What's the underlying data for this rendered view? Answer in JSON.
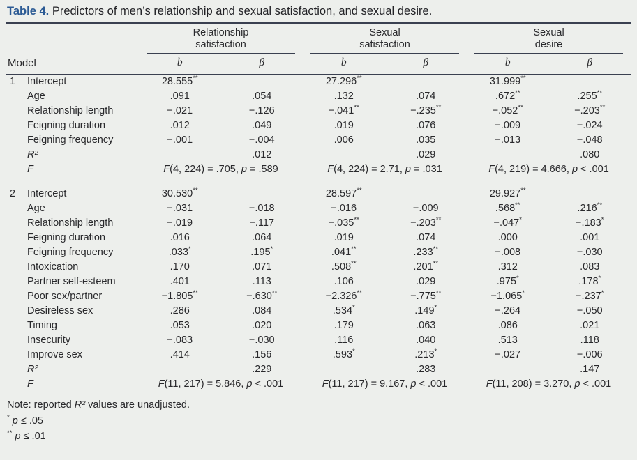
{
  "title": {
    "label": "Table 4.",
    "text": "Predictors of men’s relationship and sexual satisfaction, and sexual desire."
  },
  "columns": {
    "model_header": "Model",
    "groups": [
      {
        "line1": "Relationship",
        "line2": "satisfaction"
      },
      {
        "line1": "Sexual",
        "line2": "satisfaction"
      },
      {
        "line1": "Sexual",
        "line2": "desire"
      }
    ],
    "sub": [
      "b",
      "β"
    ]
  },
  "models": [
    {
      "number": "1",
      "rows": [
        {
          "label": "Intercept",
          "cells": [
            "28.555**",
            "",
            "27.296**",
            "",
            "31.999**",
            ""
          ]
        },
        {
          "label": "Age",
          "cells": [
            ".091",
            ".054",
            ".132",
            ".074",
            ".672**",
            ".255**"
          ]
        },
        {
          "label": "Relationship length",
          "cells": [
            "−.021",
            "−.126",
            "−.041**",
            "−.235**",
            "−.052**",
            "−.203**"
          ]
        },
        {
          "label": "Feigning duration",
          "cells": [
            ".012",
            ".049",
            ".019",
            ".076",
            "−.009",
            "−.024"
          ]
        },
        {
          "label": "Feigning frequency",
          "cells": [
            "−.001",
            "−.004",
            ".006",
            ".035",
            "−.013",
            "−.048"
          ]
        },
        {
          "label": "R²",
          "italic": true,
          "cells": [
            "",
            ".012",
            "",
            ".029",
            "",
            ".080"
          ]
        }
      ],
      "f_row": {
        "label": "F",
        "cells": [
          "F(4, 224) = .705, p = .589",
          "F(4, 224) = 2.71, p = .031",
          "F(4, 219) = 4.666, p < .001"
        ]
      }
    },
    {
      "number": "2",
      "rows": [
        {
          "label": "Intercept",
          "cells": [
            "30.530**",
            "",
            "28.597**",
            "",
            "29.927**",
            ""
          ]
        },
        {
          "label": "Age",
          "cells": [
            "−.031",
            "−.018",
            "−.016",
            "−.009",
            ".568**",
            ".216**"
          ]
        },
        {
          "label": "Relationship length",
          "cells": [
            "−.019",
            "−.117",
            "−.035**",
            "−.203**",
            "−.047*",
            "−.183*"
          ]
        },
        {
          "label": "Feigning duration",
          "cells": [
            ".016",
            ".064",
            ".019",
            ".074",
            ".000",
            ".001"
          ]
        },
        {
          "label": "Feigning frequency",
          "cells": [
            ".033*",
            ".195*",
            ".041**",
            ".233**",
            "−.008",
            "−.030"
          ]
        },
        {
          "label": "Intoxication",
          "cells": [
            ".170",
            ".071",
            ".508**",
            ".201**",
            ".312",
            ".083"
          ]
        },
        {
          "label": "Partner self-esteem",
          "cells": [
            ".401",
            ".113",
            ".106",
            ".029",
            ".975*",
            ".178*"
          ]
        },
        {
          "label": "Poor sex/partner",
          "cells": [
            "−1.805**",
            "−.630**",
            "−2.326**",
            "−.775**",
            "−1.065*",
            "−.237*"
          ]
        },
        {
          "label": "Desireless sex",
          "cells": [
            ".286",
            ".084",
            ".534*",
            ".149*",
            "−.264",
            "−.050"
          ]
        },
        {
          "label": "Timing",
          "cells": [
            ".053",
            ".020",
            ".179",
            ".063",
            ".086",
            ".021"
          ]
        },
        {
          "label": "Insecurity",
          "cells": [
            "−.083",
            "−.030",
            ".116",
            ".040",
            ".513",
            ".118"
          ]
        },
        {
          "label": "Improve sex",
          "cells": [
            ".414",
            ".156",
            ".593*",
            ".213*",
            "−.027",
            "−.006"
          ]
        },
        {
          "label": "R²",
          "italic": true,
          "cells": [
            "",
            ".229",
            "",
            ".283",
            "",
            ".147"
          ]
        }
      ],
      "f_row": {
        "label": "F",
        "cells": [
          "F(11, 217) = 5.846, p < .001",
          "F(11, 217) = 9.167, p < .001",
          "F(11, 208) = 3.270, p < .001"
        ]
      }
    }
  ],
  "notes": {
    "note_prefix": "Note: reported",
    "note_r2": "R²",
    "note_suffix": "values are unadjusted.",
    "sig": [
      {
        "marker": "*",
        "var": "p",
        "rel": "≤",
        "value": ".05"
      },
      {
        "marker": "**",
        "var": "p",
        "rel": "≤",
        "value": ".01"
      }
    ]
  },
  "colors": {
    "accent_title": "#2b5a94",
    "rule": "#3a4050",
    "background": "#edefec",
    "text": "#29292c"
  }
}
